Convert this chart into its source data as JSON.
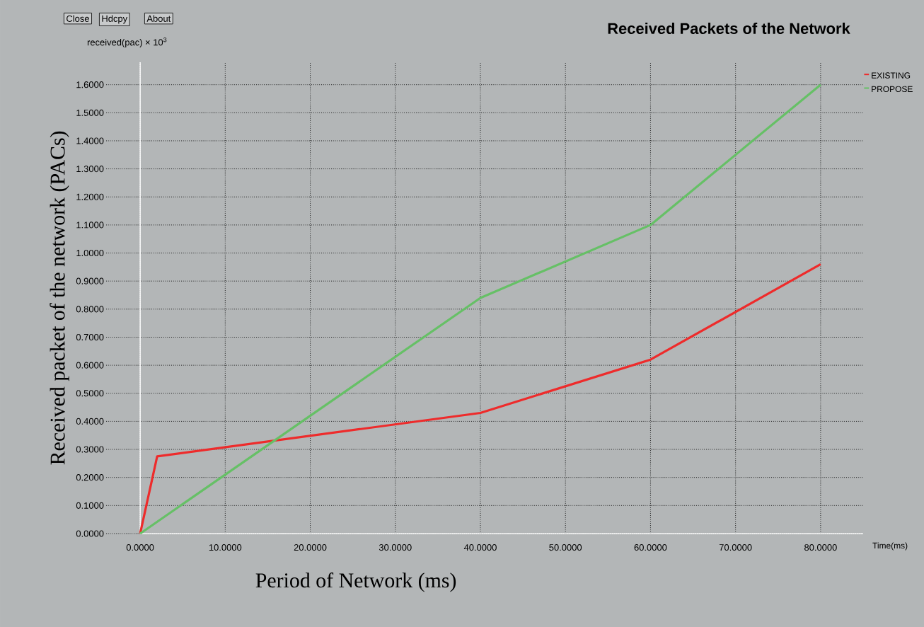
{
  "chart_data": {
    "type": "line",
    "title": "Received Packets of the Network",
    "xlabel": "Period of Network (ms)",
    "ylabel": "Received packet of the network (PACs)",
    "annotations": [
      "Close",
      "Hdcpy",
      "About",
      "received(pac) × 10$^{3}$",
      "Time(ms)"
    ],
    "series": [
      {
        "name": "EXISTING",
        "color": "#ee2b2b",
        "x": [
          0,
          2,
          40,
          60,
          80
        ],
        "values": [
          0,
          0.275,
          0.43,
          0.62,
          0.96
        ]
      },
      {
        "name": "PROPOSE",
        "color": "#66c066",
        "x": [
          0,
          40,
          60,
          80
        ],
        "values": [
          0,
          0.84,
          1.1,
          1.6
        ]
      }
    ],
    "xlim": [
      -4,
      85
    ],
    "ylim": [
      0,
      1.68
    ],
    "xticks": [
      {
        "value": 0,
        "label": "0.0000"
      },
      {
        "value": 10,
        "label": "10.0000"
      },
      {
        "value": 20,
        "label": "20.0000"
      },
      {
        "value": 30,
        "label": "30.0000"
      },
      {
        "value": 40,
        "label": "40.0000"
      },
      {
        "value": 50,
        "label": "50.0000"
      },
      {
        "value": 60,
        "label": "60.0000"
      },
      {
        "value": 70,
        "label": "70.0000"
      },
      {
        "value": 80,
        "label": "80.0000"
      }
    ],
    "yticks": [
      {
        "value": 0,
        "label": "0.0000"
      },
      {
        "value": 0.1,
        "label": "0.1000"
      },
      {
        "value": 0.2,
        "label": "0.2000"
      },
      {
        "value": 0.3,
        "label": "0.3000"
      },
      {
        "value": 0.4,
        "label": "0.4000"
      },
      {
        "value": 0.5,
        "label": "0.5000"
      },
      {
        "value": 0.6,
        "label": "0.6000"
      },
      {
        "value": 0.7,
        "label": "0.7000"
      },
      {
        "value": 0.8,
        "label": "0.8000"
      },
      {
        "value": 0.9,
        "label": "0.9000"
      },
      {
        "value": 1.0,
        "label": "1.0000"
      },
      {
        "value": 1.1,
        "label": "1.1000"
      },
      {
        "value": 1.2,
        "label": "1.2000"
      },
      {
        "value": 1.3,
        "label": "1.3000"
      },
      {
        "value": 1.4,
        "label": "1.4000"
      },
      {
        "value": 1.5,
        "label": "1.5000"
      },
      {
        "value": 1.6,
        "label": "1.6000"
      }
    ],
    "grid": true,
    "legend": "top right",
    "line_style": "solid",
    "marker": "none"
  }
}
